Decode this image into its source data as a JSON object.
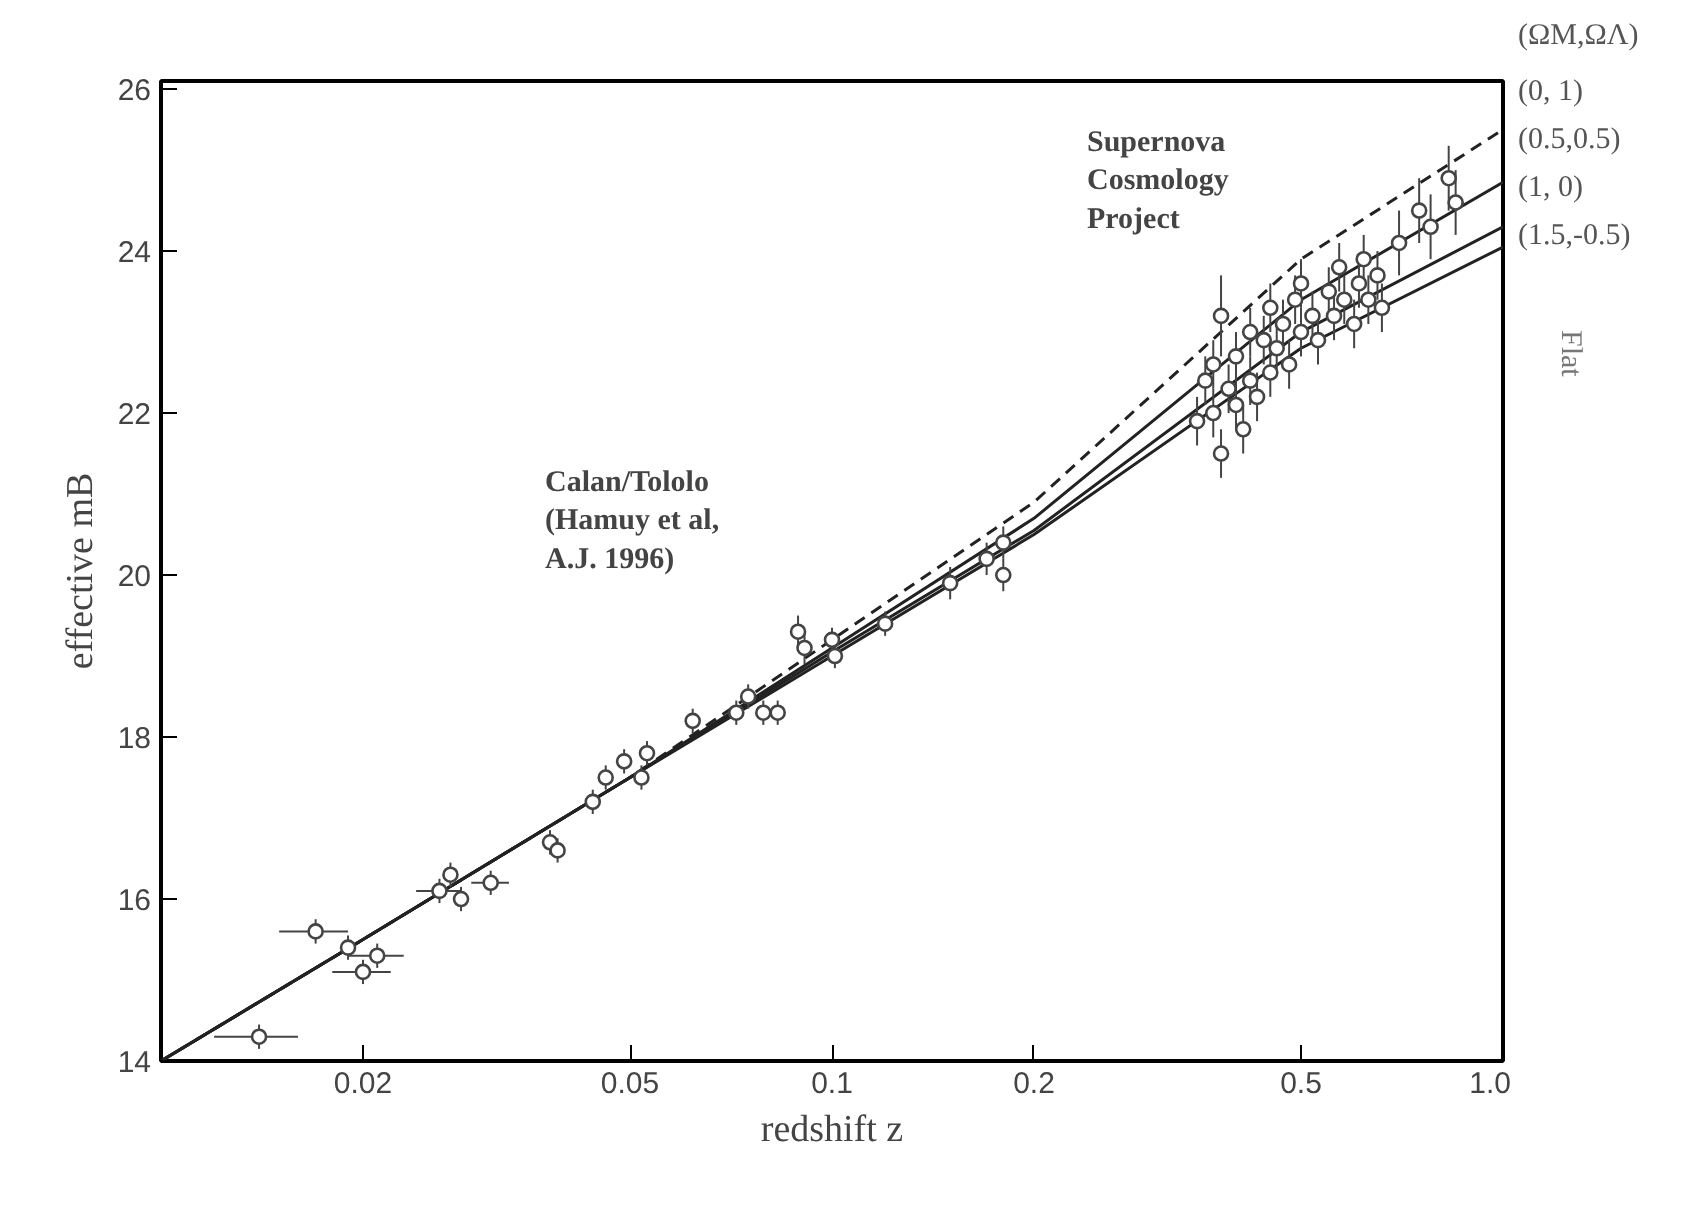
{
  "chart_data": {
    "type": "scatter",
    "xlabel": "redshift z",
    "ylabel": "effective mB",
    "legend_title": "(ΩM,ΩΛ)",
    "annotations": [
      "Calan/Tololo\n(Hamuy et al,\nA.J. 1996)",
      "Supernova\nCosmology\nProject",
      "Flat"
    ],
    "log": "x",
    "xlim": [
      0.01,
      1.0
    ],
    "ylim": [
      14,
      26.1
    ],
    "xticks": [
      0.02,
      0.05,
      0.1,
      0.2,
      0.5,
      {
        "value": 1.0,
        "label": "1.0"
      }
    ],
    "yticks": [
      14,
      16,
      18,
      20,
      22,
      24,
      26
    ],
    "grid": false,
    "series": [
      {
        "type": "line",
        "name": "(0, 1)",
        "color": "#222222",
        "line_style": "dashed",
        "x": [
          0.01,
          0.02,
          0.05,
          0.1,
          0.2,
          0.5,
          1.0
        ],
        "values": [
          14.0,
          15.5,
          17.5,
          19.2,
          20.9,
          23.9,
          25.5
        ]
      },
      {
        "type": "line",
        "name": "(0.5,0.5)",
        "color": "#222222",
        "line_style": "solid",
        "x": [
          0.01,
          0.02,
          0.05,
          0.1,
          0.2,
          0.5,
          1.0
        ],
        "values": [
          14.0,
          15.5,
          17.5,
          19.1,
          20.7,
          23.4,
          24.85
        ]
      },
      {
        "type": "line",
        "name": "(1, 0)",
        "color": "#222222",
        "line_style": "solid",
        "x": [
          0.01,
          0.02,
          0.05,
          0.1,
          0.2,
          0.5,
          1.0
        ],
        "values": [
          14.0,
          15.5,
          17.5,
          19.05,
          20.55,
          23.0,
          24.3
        ]
      },
      {
        "type": "line",
        "name": "(1.5,-0.5)",
        "color": "#222222",
        "line_style": "solid",
        "x": [
          0.01,
          0.02,
          0.05,
          0.1,
          0.2,
          0.5,
          1.0
        ],
        "values": [
          14.0,
          15.5,
          17.5,
          19.0,
          20.5,
          22.8,
          24.05
        ]
      },
      {
        "marker": "circle",
        "color": "#444444",
        "x": [
          0.014,
          0.017,
          0.019,
          0.02,
          0.021,
          0.026,
          0.027,
          0.028,
          0.031,
          0.038,
          0.039,
          0.044,
          0.046,
          0.049,
          0.052,
          0.053,
          0.062,
          0.072,
          0.075,
          0.079,
          0.083,
          0.089,
          0.091,
          0.1,
          0.101,
          0.12,
          0.15,
          0.17,
          0.18,
          0.18,
          0.35,
          0.36,
          0.37,
          0.37,
          0.38,
          0.38,
          0.39,
          0.4,
          0.4,
          0.41,
          0.42,
          0.42,
          0.43,
          0.44,
          0.45,
          0.45,
          0.46,
          0.47,
          0.48,
          0.49,
          0.5,
          0.5,
          0.52,
          0.53,
          0.55,
          0.56,
          0.57,
          0.58,
          0.6,
          0.61,
          0.62,
          0.63,
          0.65,
          0.66,
          0.7,
          0.75,
          0.78,
          0.83,
          0.85
        ],
        "values": [
          14.3,
          15.6,
          15.4,
          15.1,
          15.3,
          16.1,
          16.3,
          16.0,
          16.2,
          16.7,
          16.6,
          17.2,
          17.5,
          17.7,
          17.5,
          17.8,
          18.2,
          18.3,
          18.5,
          18.3,
          18.3,
          19.3,
          19.1,
          19.2,
          19.0,
          19.4,
          19.9,
          20.2,
          20.4,
          20.0,
          21.9,
          22.4,
          22.0,
          22.6,
          23.2,
          21.5,
          22.3,
          22.1,
          22.7,
          21.8,
          22.4,
          23.0,
          22.2,
          22.9,
          22.5,
          23.3,
          22.8,
          23.1,
          22.6,
          23.4,
          23.0,
          23.6,
          23.2,
          22.9,
          23.5,
          23.2,
          23.8,
          23.4,
          23.1,
          23.6,
          23.9,
          23.4,
          23.7,
          23.3,
          24.1,
          24.5,
          24.3,
          24.9,
          24.6
        ],
        "errors": [
          0.15,
          0.15,
          0.15,
          0.15,
          0.15,
          0.15,
          0.15,
          0.15,
          0.15,
          0.15,
          0.15,
          0.15,
          0.15,
          0.15,
          0.15,
          0.15,
          0.15,
          0.15,
          0.15,
          0.15,
          0.15,
          0.2,
          0.2,
          0.15,
          0.15,
          0.15,
          0.2,
          0.2,
          0.2,
          0.2,
          0.3,
          0.3,
          0.3,
          0.3,
          0.5,
          0.3,
          0.3,
          0.3,
          0.3,
          0.3,
          0.3,
          0.3,
          0.3,
          0.3,
          0.3,
          0.3,
          0.3,
          0.3,
          0.3,
          0.3,
          0.3,
          0.3,
          0.3,
          0.3,
          0.3,
          0.3,
          0.3,
          0.3,
          0.3,
          0.3,
          0.3,
          0.3,
          0.3,
          0.3,
          0.4,
          0.4,
          0.4,
          0.4,
          0.4
        ],
        "xerrors": [
          0.002,
          0.002,
          null,
          0.002,
          0.002,
          0.002,
          null,
          null,
          0.002,
          null,
          null,
          null,
          null,
          null,
          null,
          null,
          null,
          null,
          null,
          null,
          null,
          null,
          null,
          null,
          null,
          null,
          null,
          null,
          null,
          null,
          null,
          null,
          null,
          null,
          null,
          null,
          null,
          null,
          null,
          null,
          null,
          null,
          null,
          null,
          null,
          null,
          null,
          null,
          null,
          null,
          null,
          null,
          null,
          null,
          null,
          null,
          null,
          null,
          null,
          null,
          null,
          null,
          null,
          null,
          null,
          null,
          null,
          null,
          null
        ]
      }
    ]
  }
}
